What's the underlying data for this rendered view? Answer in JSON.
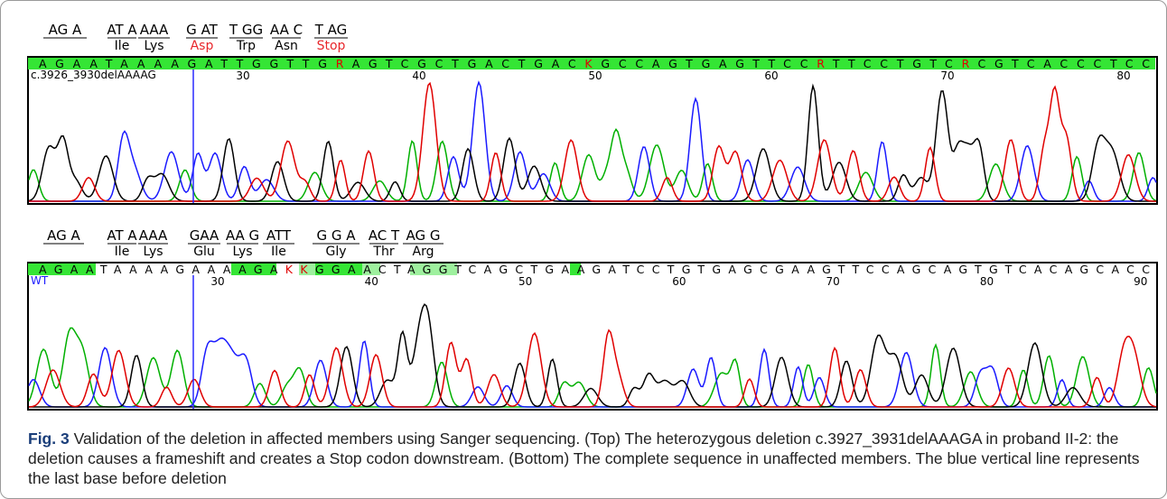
{
  "panels": [
    {
      "codons": [
        {
          "bases": "AG A"
        },
        {
          "bases": "AT A",
          "aa": "Ile"
        },
        {
          "bases": "AAA",
          "aa": "Lys"
        },
        {
          "bases": "G AT",
          "aa": "Asp",
          "aa_color": "#e8262b"
        },
        {
          "bases": "T GG",
          "aa": "Trp"
        },
        {
          "bases": "AA C",
          "aa": "Asn"
        },
        {
          "bases": "T AG",
          "aa": "Stop",
          "aa_color": "#e8262b"
        }
      ],
      "sequence": "AGAATAAAAGATTGGTTGRAGTCGCTGACTGACKGCCAGTGAGTTCCRTTCCTGTCRCGTCACCCTCC",
      "sample": "c.3926_3930delAAAAG",
      "positions": [
        30,
        40,
        50,
        60,
        70,
        80
      ]
    },
    {
      "codons": [
        {
          "bases": "AG A"
        },
        {
          "bases": "AT A",
          "aa": "Ile"
        },
        {
          "bases": "AAA",
          "aa": "Lys"
        },
        {
          "bases": "GAA",
          "aa": "Glu"
        },
        {
          "bases": "AA G",
          "aa": "Lys"
        },
        {
          "bases": "ATT",
          "aa": "Ile"
        },
        {
          "bases": "G G A",
          "aa": "Gly"
        },
        {
          "bases": "AC T",
          "aa": "Thr"
        },
        {
          "bases": "AG G",
          "aa": "Arg"
        }
      ],
      "sequence": "AGAATAAAAGAAAAGAKKGGAACTAGGTCAGCTGAAGATCCTGTGAGCGAAGTTCCAGCAGTGTCACAGCACC",
      "sample": "WT",
      "positions": [
        30,
        40,
        50,
        60,
        70,
        80,
        90
      ]
    }
  ],
  "caption": {
    "label": "Fig. 3",
    "text": "Validation of the deletion in affected members using Sanger sequencing. (Top) The heterozygous deletion c.3927_3931delAAAGA in proband II-2: the deletion causes a frameshift and creates a Stop codon downstream. (Bottom) The complete sequence in unaffected members. The blue vertical line represents the last base before deletion"
  }
}
